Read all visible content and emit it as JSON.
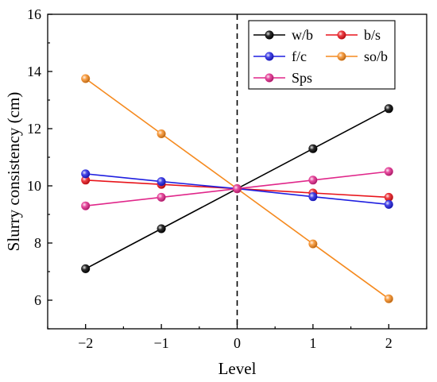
{
  "chart_data": {
    "type": "line",
    "xlabel": "Level",
    "ylabel": "Slurry consistency (cm)",
    "xlim": [
      -2.5,
      2.5
    ],
    "ylim": [
      5,
      16
    ],
    "x": [
      -2,
      -1,
      0,
      1,
      2
    ],
    "x_tick_labels": [
      "−2",
      "−1",
      "0",
      "1",
      "2"
    ],
    "y_ticks": [
      6,
      8,
      10,
      12,
      14,
      16
    ],
    "y_tick_labels": [
      "6",
      "8",
      "10",
      "12",
      "14",
      "16"
    ],
    "reference_line": {
      "x": 0,
      "style": "dashed"
    },
    "grid": false,
    "legend_position": "top-right",
    "series": [
      {
        "name": "w/b",
        "color": "#000000",
        "values": [
          7.1,
          8.5,
          9.9,
          11.3,
          12.7
        ]
      },
      {
        "name": "b/s",
        "color": "#e8141b",
        "values": [
          10.2,
          10.05,
          9.9,
          9.75,
          9.6
        ]
      },
      {
        "name": "f/c",
        "color": "#1f1fe0",
        "values": [
          10.42,
          10.15,
          9.9,
          9.62,
          9.35
        ]
      },
      {
        "name": "so/b",
        "color": "#f58a1f",
        "values": [
          13.75,
          11.82,
          9.9,
          7.97,
          6.05
        ]
      },
      {
        "name": "Sps",
        "color": "#e0278a",
        "values": [
          9.3,
          9.6,
          9.9,
          10.2,
          10.5
        ]
      }
    ]
  }
}
